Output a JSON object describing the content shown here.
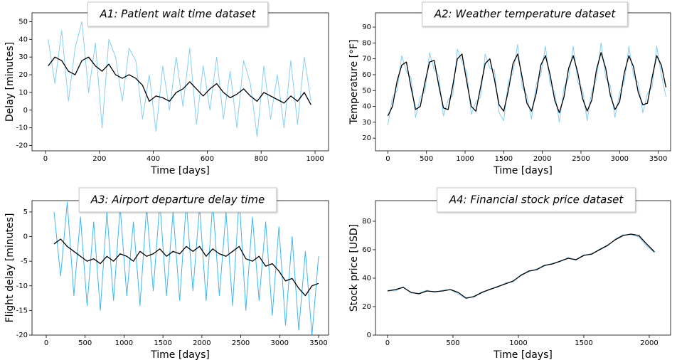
{
  "chart_data": [
    {
      "type": "line",
      "title": "A1: Patient wait time dataset",
      "xlabel": "Time [days]",
      "ylabel": "Delay [minutes]",
      "xlim": [
        -50,
        1050
      ],
      "ylim": [
        -23,
        55
      ],
      "xticks": [
        0,
        200,
        400,
        600,
        800,
        1000
      ],
      "yticks": [
        -20,
        -10,
        0,
        10,
        20,
        30,
        40,
        50
      ],
      "x": [
        10,
        35,
        60,
        85,
        110,
        135,
        160,
        185,
        210,
        235,
        260,
        285,
        310,
        335,
        360,
        385,
        410,
        435,
        460,
        485,
        510,
        535,
        560,
        585,
        610,
        635,
        660,
        685,
        710,
        735,
        760,
        785,
        810,
        835,
        860,
        885,
        910,
        935,
        960,
        985
      ],
      "series": [
        {
          "color": "#87cef5",
          "values": [
            40,
            15,
            45,
            5,
            35,
            50,
            10,
            38,
            -10,
            40,
            30,
            5,
            35,
            28,
            -5,
            20,
            -12,
            25,
            0,
            30,
            2,
            35,
            -8,
            25,
            0,
            30,
            -5,
            22,
            -10,
            28,
            15,
            -15,
            25,
            -5,
            20,
            -10,
            28,
            -8,
            30,
            5
          ]
        },
        {
          "color": "#000000",
          "values": [
            25,
            30,
            28,
            22,
            20,
            28,
            30,
            25,
            22,
            26,
            20,
            18,
            20,
            18,
            14,
            5,
            8,
            7,
            5,
            10,
            12,
            16,
            12,
            8,
            12,
            15,
            10,
            7,
            9,
            12,
            8,
            5,
            10,
            8,
            6,
            4,
            8,
            5,
            10,
            3
          ]
        }
      ]
    },
    {
      "type": "line",
      "title": "A2: Weather temperature dataset",
      "xlabel": "Time [days]",
      "ylabel": "Temperature [°F]",
      "xlim": [
        -160,
        3660
      ],
      "ylim": [
        12,
        99
      ],
      "xticks": [
        0,
        500,
        1000,
        1500,
        2000,
        2500,
        3000,
        3500
      ],
      "yticks": [
        20,
        30,
        40,
        50,
        60,
        70,
        80,
        90
      ],
      "x": [
        0,
        60,
        120,
        180,
        240,
        300,
        360,
        420,
        480,
        540,
        600,
        660,
        720,
        780,
        840,
        900,
        960,
        1020,
        1080,
        1140,
        1200,
        1260,
        1320,
        1380,
        1440,
        1500,
        1560,
        1620,
        1680,
        1740,
        1800,
        1860,
        1920,
        1980,
        2040,
        2100,
        2160,
        2220,
        2280,
        2340,
        2400,
        2460,
        2520,
        2580,
        2640,
        2700,
        2760,
        2820,
        2880,
        2940,
        3000,
        3060,
        3120,
        3180,
        3240,
        3300,
        3360,
        3420,
        3480,
        3540,
        3600
      ],
      "series": [
        {
          "color": "#87cef5",
          "values": [
            28,
            46,
            50,
            72,
            62,
            58,
            33,
            46,
            49,
            74,
            63,
            59,
            34,
            44,
            47,
            76,
            68,
            62,
            35,
            43,
            46,
            73,
            64,
            63,
            36,
            31,
            56,
            61,
            79,
            52,
            47,
            32,
            54,
            60,
            78,
            54,
            49,
            30,
            52,
            58,
            78,
            55,
            51,
            31,
            50,
            57,
            80,
            58,
            53,
            33,
            49,
            55,
            78,
            59,
            55,
            36,
            48,
            52,
            78,
            60,
            46
          ]
        },
        {
          "color": "#000000",
          "values": [
            34,
            40,
            56,
            66,
            68,
            52,
            38,
            40,
            55,
            68,
            69,
            53,
            39,
            38,
            53,
            70,
            73,
            56,
            40,
            37,
            52,
            67,
            70,
            57,
            41,
            37,
            50,
            67,
            73,
            58,
            42,
            37,
            48,
            66,
            72,
            60,
            44,
            36,
            46,
            64,
            72,
            61,
            45,
            37,
            44,
            63,
            74,
            64,
            47,
            38,
            43,
            61,
            72,
            65,
            49,
            41,
            42,
            58,
            72,
            66,
            52
          ]
        }
      ]
    },
    {
      "type": "line",
      "title": "A3: Airport departure delay time",
      "xlabel": "Time [days]",
      "ylabel": "Flight delay [minutes]",
      "xlim": [
        -183,
        3628
      ],
      "ylim": [
        -20,
        7.3
      ],
      "xticks": [
        0,
        500,
        1000,
        1500,
        2000,
        2500,
        3000,
        3500
      ],
      "yticks": [
        -20,
        -15,
        -10,
        -5,
        0,
        5
      ],
      "x": [
        100,
        185,
        270,
        355,
        440,
        525,
        610,
        695,
        780,
        865,
        950,
        1035,
        1120,
        1205,
        1290,
        1375,
        1460,
        1545,
        1630,
        1715,
        1800,
        1885,
        1970,
        2055,
        2140,
        2225,
        2310,
        2395,
        2480,
        2565,
        2650,
        2735,
        2820,
        2905,
        2990,
        3075,
        3160,
        3245,
        3330,
        3415,
        3500
      ],
      "series": [
        {
          "color": "#3fb6ef",
          "values": [
            5,
            -8,
            7,
            -12,
            4,
            -14,
            3,
            -15,
            5,
            -13,
            6,
            -12,
            3,
            -14,
            6,
            -11,
            7,
            -12,
            5,
            -13,
            7,
            -11,
            6,
            -13,
            7,
            -12,
            5,
            -14,
            8,
            -15,
            4,
            -13,
            3,
            -16,
            2,
            -18,
            0,
            -19,
            -3,
            -20,
            -4
          ]
        },
        {
          "color": "#000000",
          "values": [
            -1.5,
            -0.5,
            -2,
            -3,
            -4,
            -5,
            -4.5,
            -5.5,
            -4,
            -5,
            -3.5,
            -4,
            -5,
            -3,
            -4,
            -3.5,
            -2.5,
            -4,
            -3,
            -3.5,
            -2,
            -3,
            -2,
            -4,
            -2.5,
            -3.5,
            -4,
            -3,
            -2,
            -4.5,
            -5,
            -4,
            -6,
            -5.5,
            -7,
            -9,
            -8.5,
            -10.5,
            -12,
            -10,
            -9.5
          ]
        }
      ]
    },
    {
      "type": "line",
      "title": "A4: Financial stock price dataset",
      "xlabel": "Time [days]",
      "ylabel": "Stock price [USD]",
      "xlim": [
        -92,
        2163
      ],
      "ylim": [
        0,
        94.5
      ],
      "xticks": [
        0,
        500,
        1000,
        1500,
        2000
      ],
      "yticks": [
        0,
        20,
        40,
        60,
        80
      ],
      "x": [
        0,
        60,
        120,
        180,
        240,
        300,
        360,
        420,
        480,
        540,
        600,
        660,
        720,
        780,
        840,
        900,
        960,
        1020,
        1080,
        1140,
        1200,
        1260,
        1320,
        1380,
        1440,
        1500,
        1560,
        1620,
        1680,
        1740,
        1800,
        1860,
        1920,
        1980,
        2040
      ],
      "series": [
        {
          "color": "#87cef5",
          "values": [
            31.5,
            31,
            34,
            29.5,
            29.5,
            31.5,
            30,
            31.5,
            32,
            29,
            25.5,
            27.5,
            29.5,
            32.5,
            33.5,
            36.5,
            37.5,
            42.5,
            44.5,
            46.5,
            48.5,
            50.5,
            51.5,
            54.5,
            52.5,
            56.5,
            56.5,
            60.5,
            62.5,
            67.5,
            70.5,
            70.5,
            69,
            62.5,
            58
          ]
        },
        {
          "color": "#000000",
          "values": [
            31,
            32,
            33.5,
            30,
            29,
            31,
            30.5,
            31,
            32,
            30,
            26,
            27,
            30,
            32,
            34,
            36,
            38,
            42,
            45,
            46,
            49,
            50,
            52,
            54,
            53,
            56,
            57,
            60,
            63,
            67,
            70,
            71,
            70,
            64,
            58.5
          ]
        }
      ]
    }
  ]
}
